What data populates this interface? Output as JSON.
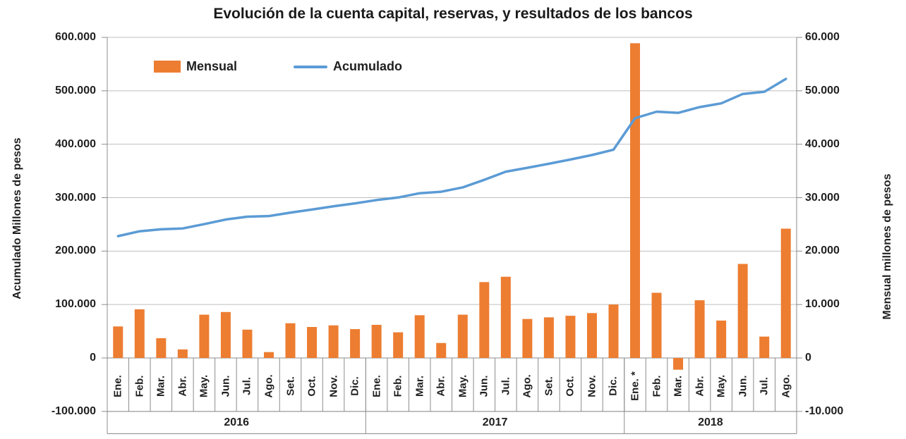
{
  "title": "Evolución de la cuenta capital, reservas, y resultados de los bancos",
  "legend": {
    "mensual": "Mensual",
    "acumulado": "Acumulado"
  },
  "axes": {
    "left_title": "Acumulado Millones de pesos",
    "right_title": "Mensual millones de pesos",
    "left_ticks": [
      "600.000",
      "500.000",
      "400.000",
      "300.000",
      "200.000",
      "100.000",
      "0",
      "-100.000"
    ],
    "right_ticks": [
      "60.000",
      "50.000",
      "40.000",
      "30.000",
      "20.000",
      "10.000",
      "0",
      "-10.000"
    ]
  },
  "colors": {
    "bar": "#ED7D31",
    "line": "#5B9BD5",
    "grid": "#BFBFBF",
    "axis": "#8C8C8C",
    "text": "#1F1F1F"
  },
  "chart_data": {
    "type": "bar+line combo",
    "categories": [
      "Ene.",
      "Feb.",
      "Mar.",
      "Abr.",
      "May.",
      "Jun.",
      "Jul.",
      "Ago.",
      "Set.",
      "Oct.",
      "Nov.",
      "Dic.",
      "Ene.",
      "Feb.",
      "Mar.",
      "Abr.",
      "May.",
      "Jun.",
      "Jul.",
      "Ago.",
      "Set.",
      "Oct.",
      "Nov.",
      "Dic.",
      "Ene. *",
      "Feb.",
      "Mar.",
      "Abr.",
      "May.",
      "Jun.",
      "Jul.",
      "Ago."
    ],
    "year_groups": [
      {
        "label": "2016",
        "count": 12
      },
      {
        "label": "2017",
        "count": 12
      },
      {
        "label": "2018",
        "count": 8
      }
    ],
    "series": [
      {
        "name": "Mensual",
        "type": "bar",
        "axis": "right",
        "color": "#ED7D31",
        "values": [
          5900,
          9100,
          3700,
          1600,
          8100,
          8600,
          5300,
          1100,
          6500,
          5800,
          6100,
          5400,
          6200,
          4800,
          8000,
          2800,
          8100,
          14200,
          15200,
          7300,
          7600,
          7900,
          8400,
          10000,
          58900,
          12200,
          -2200,
          10800,
          7000,
          17600,
          4000,
          24200
        ]
      },
      {
        "name": "Acumulado",
        "type": "line",
        "axis": "left",
        "color": "#5B9BD5",
        "values": [
          228000,
          237100,
          240800,
          242400,
          250500,
          259100,
          264400,
          265500,
          272000,
          277800,
          283900,
          289300,
          295500,
          300300,
          308300,
          311100,
          319200,
          333400,
          348600,
          355900,
          363500,
          371400,
          379800,
          389800,
          448700,
          460900,
          458700,
          469500,
          476500,
          494100,
          498100,
          522300
        ]
      }
    ],
    "left_axis": {
      "label": "Acumulado Millones de pesos",
      "min": -100000,
      "max": 600000,
      "step": 100000
    },
    "right_axis": {
      "label": "Mensual millones de pesos",
      "min": -10000,
      "max": 60000,
      "step": 10000
    },
    "grid": true,
    "legend_position": "top-left-inside"
  }
}
